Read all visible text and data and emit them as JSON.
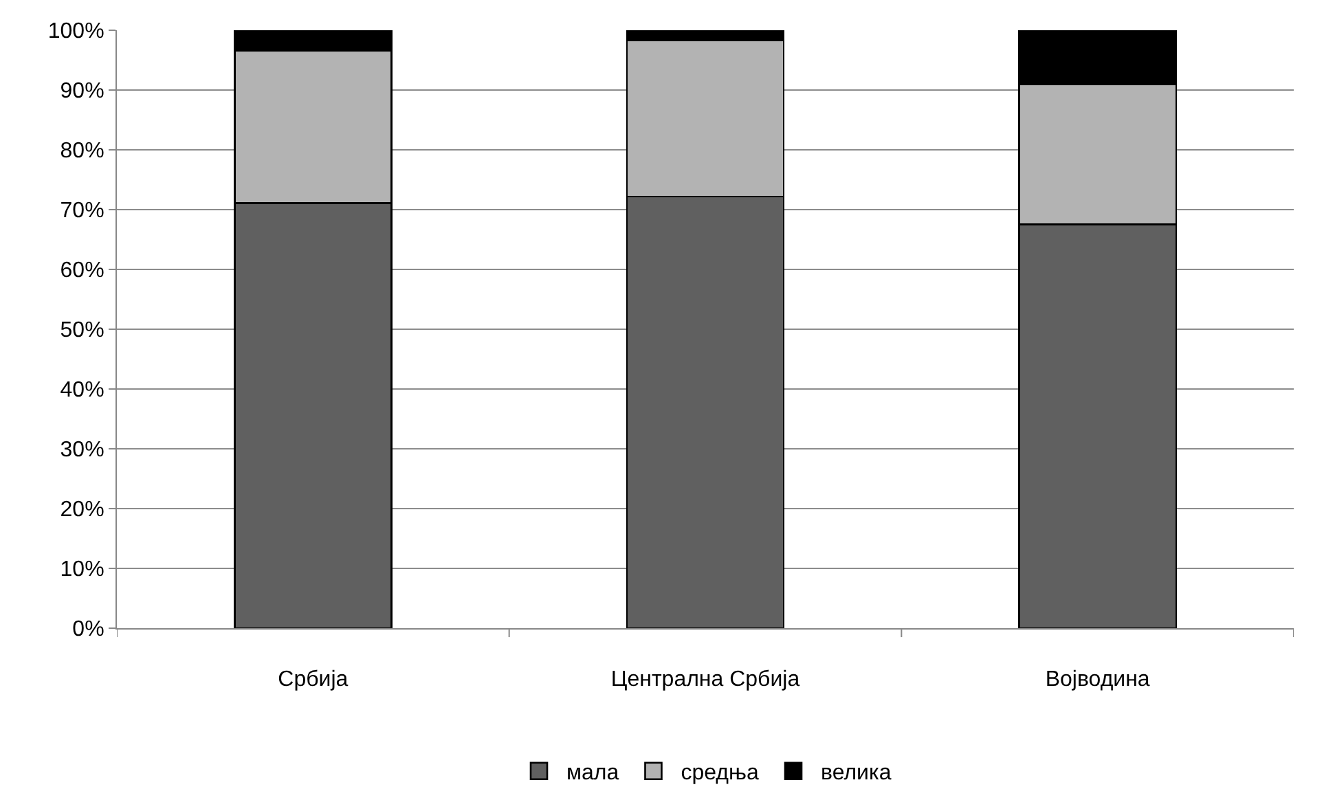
{
  "chart_data": {
    "type": "bar",
    "stacked": true,
    "categories": [
      "Србија",
      "Централна Србија",
      "Војводина"
    ],
    "series": [
      {
        "name": "мала",
        "color": "#606060",
        "values": [
          71.1,
          72.2,
          67.5
        ]
      },
      {
        "name": "средња",
        "color": "#b3b3b3",
        "values": [
          25.5,
          26.1,
          23.5
        ]
      },
      {
        "name": "велика",
        "color": "#000000",
        "values": [
          3.4,
          1.7,
          9.0
        ]
      }
    ],
    "ylim": [
      0,
      100
    ],
    "yticks": [
      {
        "value": 0,
        "label": "0%"
      },
      {
        "value": 10,
        "label": "10%"
      },
      {
        "value": 20,
        "label": "20%"
      },
      {
        "value": 30,
        "label": "30%"
      },
      {
        "value": 40,
        "label": "40%"
      },
      {
        "value": 50,
        "label": "50%"
      },
      {
        "value": 60,
        "label": "60%"
      },
      {
        "value": 70,
        "label": "70%"
      },
      {
        "value": 80,
        "label": "80%"
      },
      {
        "value": 90,
        "label": "90%"
      },
      {
        "value": 100,
        "label": "100%"
      }
    ],
    "grid": "y",
    "legend": "bottom"
  }
}
